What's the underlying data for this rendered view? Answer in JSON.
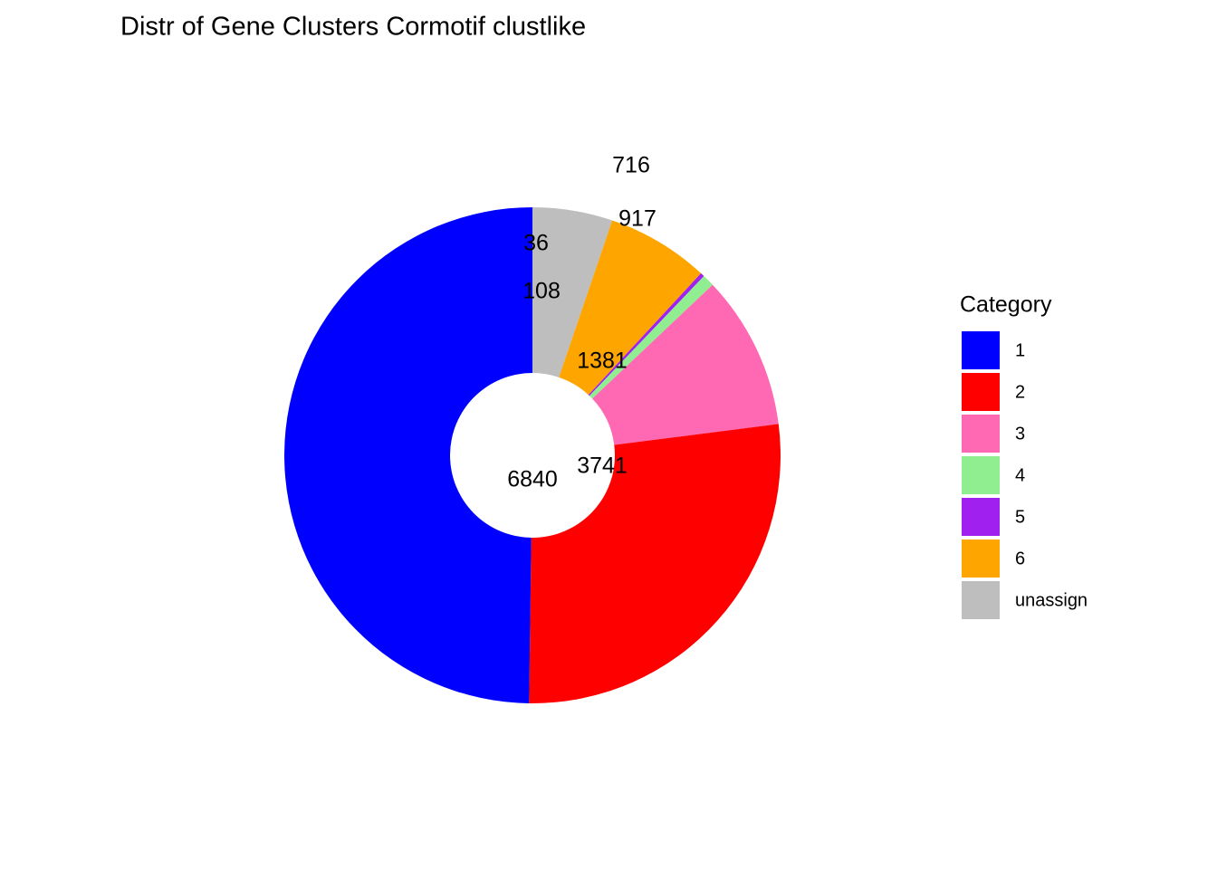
{
  "chart_data": {
    "type": "donut",
    "title": "Distr of Gene Clusters Cormotif clustlike",
    "legend_title": "Category",
    "categories": [
      "1",
      "2",
      "3",
      "4",
      "5",
      "6",
      "unassign"
    ],
    "values": [
      6840,
      3741,
      1381,
      108,
      36,
      917,
      716
    ],
    "colors": [
      "#0000FF",
      "#FF0000",
      "#FF69B4",
      "#90EE90",
      "#A020F0",
      "#FFA500",
      "#BEBEBE"
    ],
    "legend_position": "right"
  }
}
